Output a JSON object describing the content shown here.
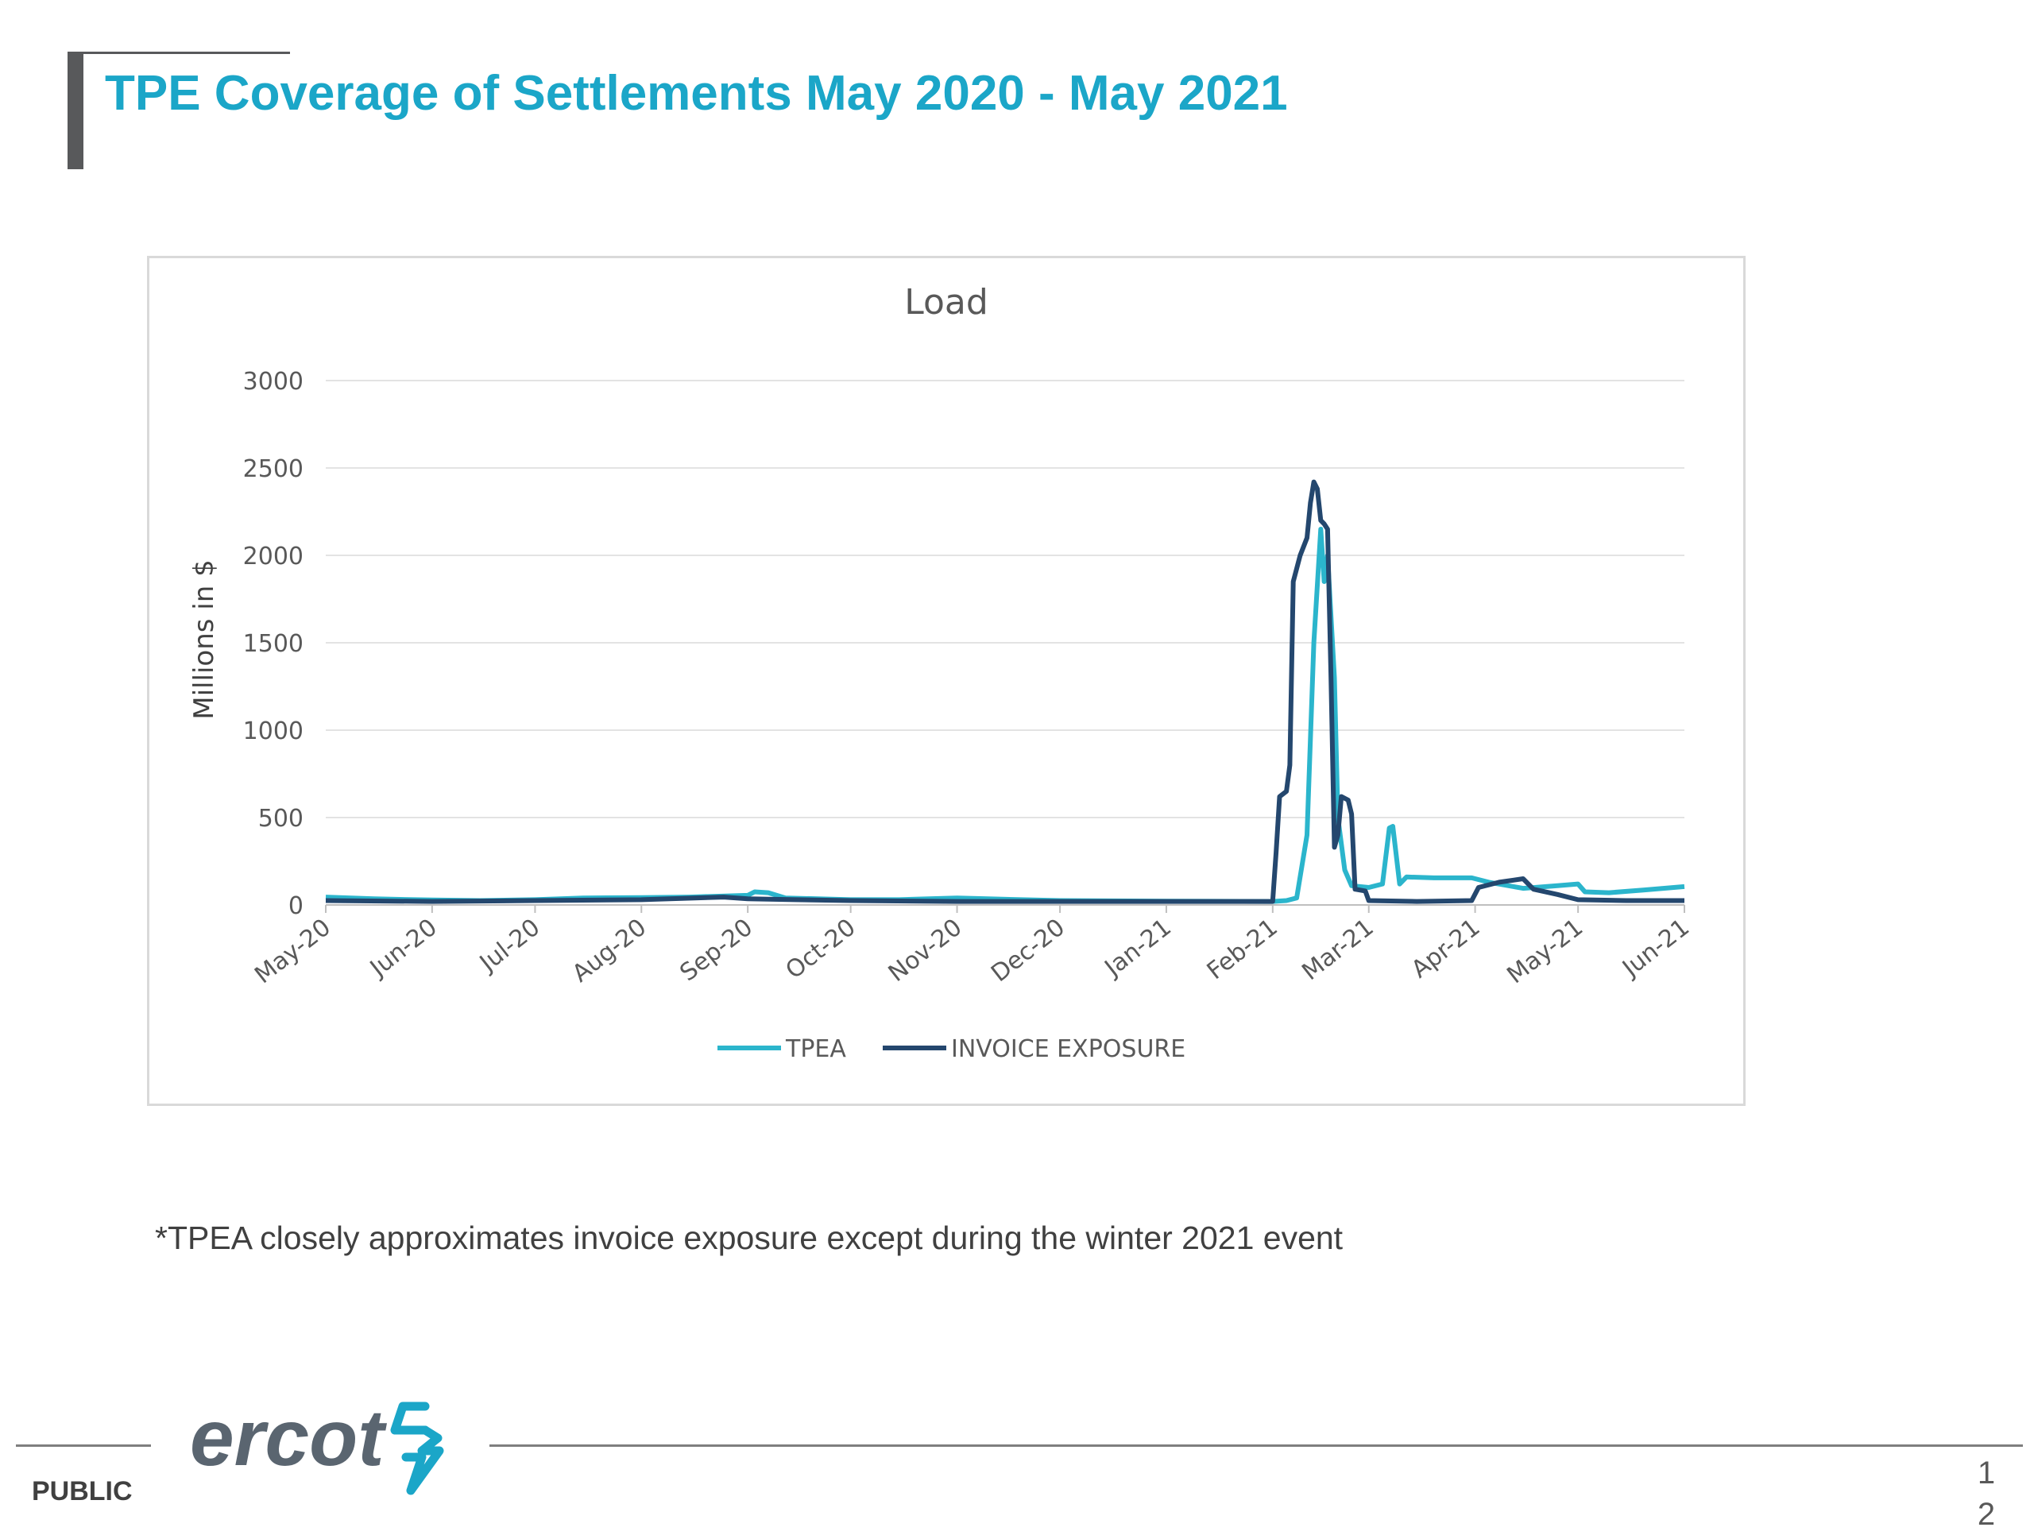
{
  "slide": {
    "title": "TPE Coverage of Settlements May 2020 - May 2021",
    "footnote": "*TPEA closely approximates invoice exposure except during the winter 2021 event",
    "classification": "PUBLIC",
    "page_number_line1": "1",
    "page_number_line2": "2",
    "logo_text": "ercot"
  },
  "colors": {
    "title": "#1ba6c8",
    "tpea": "#2bb5cc",
    "invoice_exposure": "#24476e",
    "grid": "#e3e3e3",
    "axis_text": "#595959"
  },
  "chart_data": {
    "type": "line",
    "title": "Load",
    "xlabel": "",
    "ylabel": "Millions in $",
    "ylim": [
      0,
      3000
    ],
    "yticks": [
      0,
      500,
      1000,
      1500,
      2000,
      2500,
      3000
    ],
    "xticks": [
      "May-20",
      "Jun-20",
      "Jul-20",
      "Aug-20",
      "Sep-20",
      "Oct-20",
      "Nov-20",
      "Dec-20",
      "Jan-21",
      "Feb-21",
      "Mar-21",
      "Apr-21",
      "May-21",
      "Jun-21"
    ],
    "xlim": [
      "2020-05-01",
      "2021-06-01"
    ],
    "grid": true,
    "legend_position": "bottom",
    "series": [
      {
        "name": "TPEA",
        "color": "#2bb5cc",
        "points": [
          [
            "2020-05-01",
            45
          ],
          [
            "2020-05-15",
            35
          ],
          [
            "2020-06-01",
            28
          ],
          [
            "2020-06-15",
            25
          ],
          [
            "2020-07-01",
            30
          ],
          [
            "2020-07-15",
            40
          ],
          [
            "2020-08-01",
            42
          ],
          [
            "2020-08-15",
            45
          ],
          [
            "2020-09-01",
            55
          ],
          [
            "2020-09-03",
            75
          ],
          [
            "2020-09-07",
            70
          ],
          [
            "2020-09-12",
            40
          ],
          [
            "2020-10-01",
            30
          ],
          [
            "2020-10-15",
            30
          ],
          [
            "2020-11-01",
            40
          ],
          [
            "2020-11-10",
            35
          ],
          [
            "2020-12-01",
            25
          ],
          [
            "2021-01-01",
            22
          ],
          [
            "2021-02-01",
            20
          ],
          [
            "2021-02-05",
            25
          ],
          [
            "2021-02-08",
            40
          ],
          [
            "2021-02-11",
            400
          ],
          [
            "2021-02-13",
            1500
          ],
          [
            "2021-02-15",
            2150
          ],
          [
            "2021-02-16",
            1850
          ],
          [
            "2021-02-17",
            2000
          ],
          [
            "2021-02-19",
            1300
          ],
          [
            "2021-02-20",
            500
          ],
          [
            "2021-02-22",
            200
          ],
          [
            "2021-02-24",
            110
          ],
          [
            "2021-03-01",
            100
          ],
          [
            "2021-03-05",
            120
          ],
          [
            "2021-03-07",
            440
          ],
          [
            "2021-03-08",
            450
          ],
          [
            "2021-03-10",
            120
          ],
          [
            "2021-03-12",
            160
          ],
          [
            "2021-03-20",
            155
          ],
          [
            "2021-03-31",
            155
          ],
          [
            "2021-04-05",
            130
          ],
          [
            "2021-04-15",
            95
          ],
          [
            "2021-04-25",
            110
          ],
          [
            "2021-05-01",
            120
          ],
          [
            "2021-05-03",
            75
          ],
          [
            "2021-05-10",
            70
          ],
          [
            "2021-05-20",
            85
          ],
          [
            "2021-06-01",
            105
          ]
        ]
      },
      {
        "name": "INVOICE EXPOSURE",
        "color": "#24476e",
        "points": [
          [
            "2020-05-01",
            25
          ],
          [
            "2020-06-01",
            20
          ],
          [
            "2020-07-01",
            25
          ],
          [
            "2020-08-01",
            30
          ],
          [
            "2020-08-25",
            45
          ],
          [
            "2020-09-01",
            35
          ],
          [
            "2020-09-15",
            30
          ],
          [
            "2020-10-01",
            25
          ],
          [
            "2020-11-01",
            20
          ],
          [
            "2020-12-01",
            20
          ],
          [
            "2021-01-01",
            20
          ],
          [
            "2021-02-01",
            20
          ],
          [
            "2021-02-02",
            300
          ],
          [
            "2021-02-03",
            620
          ],
          [
            "2021-02-05",
            650
          ],
          [
            "2021-02-06",
            800
          ],
          [
            "2021-02-07",
            1850
          ],
          [
            "2021-02-09",
            2000
          ],
          [
            "2021-02-11",
            2100
          ],
          [
            "2021-02-12",
            2300
          ],
          [
            "2021-02-13",
            2420
          ],
          [
            "2021-02-14",
            2380
          ],
          [
            "2021-02-15",
            2200
          ],
          [
            "2021-02-16",
            2180
          ],
          [
            "2021-02-17",
            2150
          ],
          [
            "2021-02-18",
            1300
          ],
          [
            "2021-02-19",
            330
          ],
          [
            "2021-02-20",
            400
          ],
          [
            "2021-02-21",
            620
          ],
          [
            "2021-02-23",
            600
          ],
          [
            "2021-02-24",
            520
          ],
          [
            "2021-02-25",
            90
          ],
          [
            "2021-02-28",
            80
          ],
          [
            "2021-03-01",
            25
          ],
          [
            "2021-03-15",
            20
          ],
          [
            "2021-03-31",
            25
          ],
          [
            "2021-04-02",
            100
          ],
          [
            "2021-04-08",
            130
          ],
          [
            "2021-04-15",
            150
          ],
          [
            "2021-04-18",
            90
          ],
          [
            "2021-04-25",
            60
          ],
          [
            "2021-05-01",
            30
          ],
          [
            "2021-05-15",
            25
          ],
          [
            "2021-06-01",
            25
          ]
        ]
      }
    ]
  }
}
